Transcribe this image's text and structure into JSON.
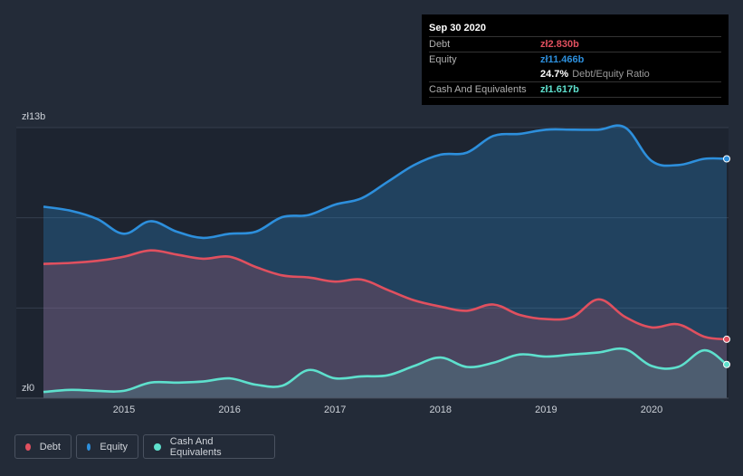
{
  "tooltip": {
    "date": "Sep 30 2020",
    "debt_label": "Debt",
    "debt_value": "zł2.830b",
    "equity_label": "Equity",
    "equity_value": "zł11.466b",
    "ratio_value": "24.7%",
    "ratio_label": "Debt/Equity Ratio",
    "cash_label": "Cash And Equivalents",
    "cash_value": "zł1.617b"
  },
  "legend": {
    "debt": "Debt",
    "equity": "Equity",
    "cash": "Cash And Equivalents"
  },
  "colors": {
    "debt": "#e0505f",
    "equity": "#2d8fdc",
    "cash": "#5ee0cd",
    "background": "#232b38"
  },
  "chart_data": {
    "type": "area",
    "title": "",
    "xlabel": "",
    "ylabel": "",
    "ylim": [
      0,
      13
    ],
    "y_tick_labels": [
      "zł13b",
      "zł0"
    ],
    "x_ticks": [
      2015,
      2016,
      2017,
      2018,
      2019,
      2020
    ],
    "x_tick_labels": [
      "2015",
      "2016",
      "2017",
      "2018",
      "2019",
      "2020"
    ],
    "x": [
      2014.25,
      2014.5,
      2014.75,
      2015.0,
      2015.25,
      2015.5,
      2015.75,
      2016.0,
      2016.25,
      2016.5,
      2016.75,
      2017.0,
      2017.25,
      2017.5,
      2017.75,
      2018.0,
      2018.25,
      2018.5,
      2018.75,
      2019.0,
      2019.25,
      2019.5,
      2019.75,
      2020.0,
      2020.25,
      2020.5,
      2020.75
    ],
    "series": [
      {
        "name": "Equity",
        "values": [
          9.2,
          9.0,
          8.6,
          7.9,
          8.5,
          8.0,
          7.7,
          7.9,
          8.0,
          8.7,
          8.8,
          9.3,
          9.6,
          10.4,
          11.2,
          11.7,
          11.8,
          12.6,
          12.7,
          12.9,
          12.9,
          12.9,
          13.0,
          11.4,
          11.2,
          11.5,
          11.5
        ]
      },
      {
        "name": "Debt",
        "values": [
          6.45,
          6.5,
          6.6,
          6.8,
          7.1,
          6.9,
          6.7,
          6.8,
          6.3,
          5.9,
          5.8,
          5.6,
          5.7,
          5.2,
          4.7,
          4.4,
          4.2,
          4.5,
          4.0,
          3.8,
          3.9,
          4.75,
          3.9,
          3.4,
          3.55,
          2.95,
          2.83
        ]
      },
      {
        "name": "Cash And Equivalents",
        "values": [
          0.3,
          0.4,
          0.35,
          0.35,
          0.75,
          0.75,
          0.8,
          0.95,
          0.65,
          0.6,
          1.35,
          0.95,
          1.05,
          1.1,
          1.55,
          1.95,
          1.5,
          1.7,
          2.1,
          2.0,
          2.1,
          2.2,
          2.35,
          1.55,
          1.5,
          2.3,
          1.617
        ]
      }
    ]
  }
}
